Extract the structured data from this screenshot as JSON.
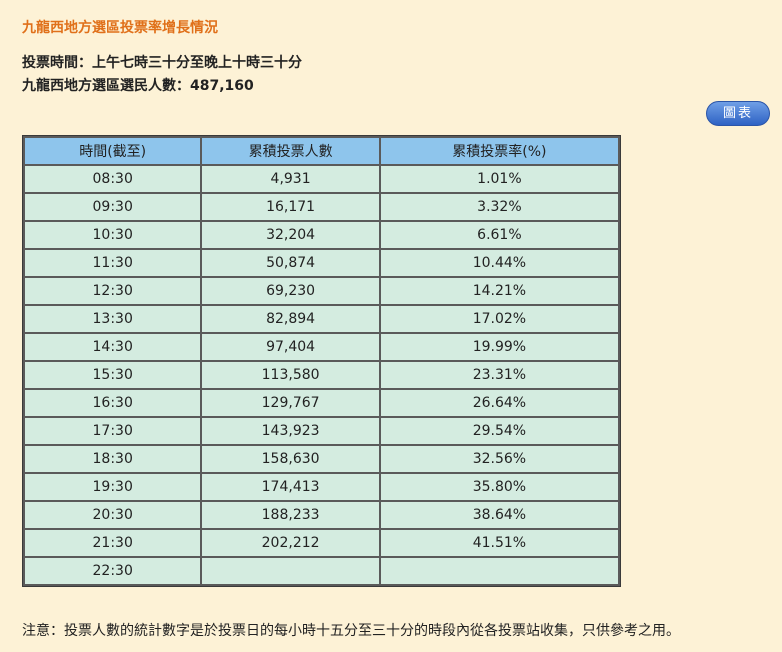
{
  "title": "九龍西地方選區投票率增長情況",
  "voting_time": "投票時間：上午七時三十分至晚上十時三十分",
  "registered_voters_label": "九龍西地方選區選民人數：",
  "registered_voters": "487,160",
  "chart_button": "圖表",
  "table": {
    "headers": [
      "時間(截至)",
      "累積投票人數",
      "累積投票率(%)"
    ],
    "rows": [
      [
        "08:30",
        "4,931",
        "1.01%"
      ],
      [
        "09:30",
        "16,171",
        "3.32%"
      ],
      [
        "10:30",
        "32,204",
        "6.61%"
      ],
      [
        "11:30",
        "50,874",
        "10.44%"
      ],
      [
        "12:30",
        "69,230",
        "14.21%"
      ],
      [
        "13:30",
        "82,894",
        "17.02%"
      ],
      [
        "14:30",
        "97,404",
        "19.99%"
      ],
      [
        "15:30",
        "113,580",
        "23.31%"
      ],
      [
        "16:30",
        "129,767",
        "26.64%"
      ],
      [
        "17:30",
        "143,923",
        "29.54%"
      ],
      [
        "18:30",
        "158,630",
        "32.56%"
      ],
      [
        "19:30",
        "174,413",
        "35.80%"
      ],
      [
        "20:30",
        "188,233",
        "38.64%"
      ],
      [
        "21:30",
        "202,212",
        "41.51%"
      ],
      [
        "22:30",
        "",
        ""
      ]
    ]
  },
  "note": "注意：投票人數的統計數字是於投票日的每小時十五分至三十分的時段內從各投票站收集，只供參考之用。",
  "colors": {
    "background": "#fdf2d6",
    "title": "#e0701a",
    "header_bg": "#8ec5ec",
    "cell_bg": "#d4ece0",
    "button": "#2e62c4"
  }
}
